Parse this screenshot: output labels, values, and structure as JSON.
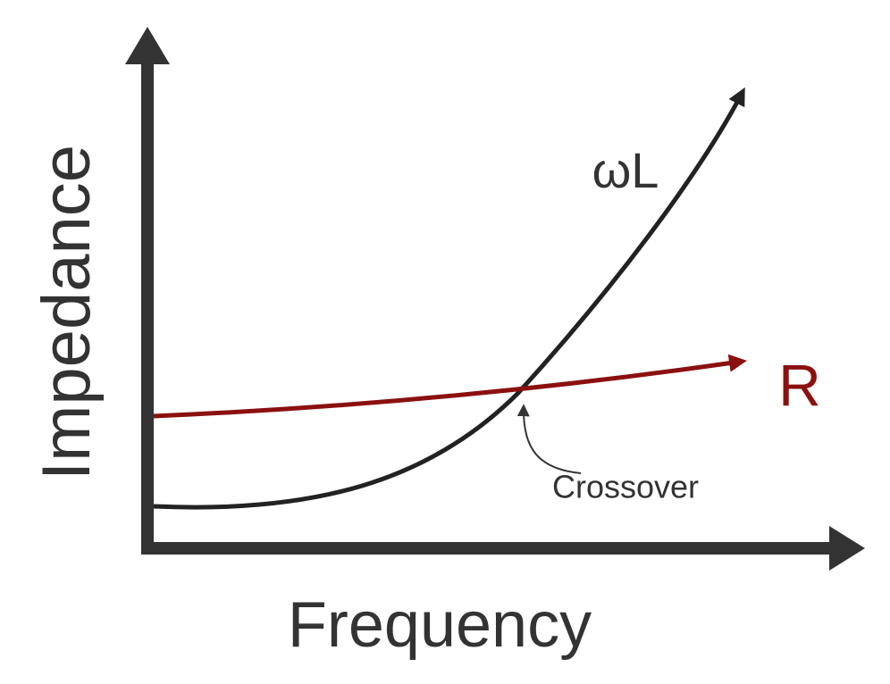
{
  "axes": {
    "y_label": "Impedance",
    "x_label": "Frequency"
  },
  "curves": [
    {
      "label": "ωL"
    },
    {
      "label": "R"
    }
  ],
  "annotation": "Crossover"
}
